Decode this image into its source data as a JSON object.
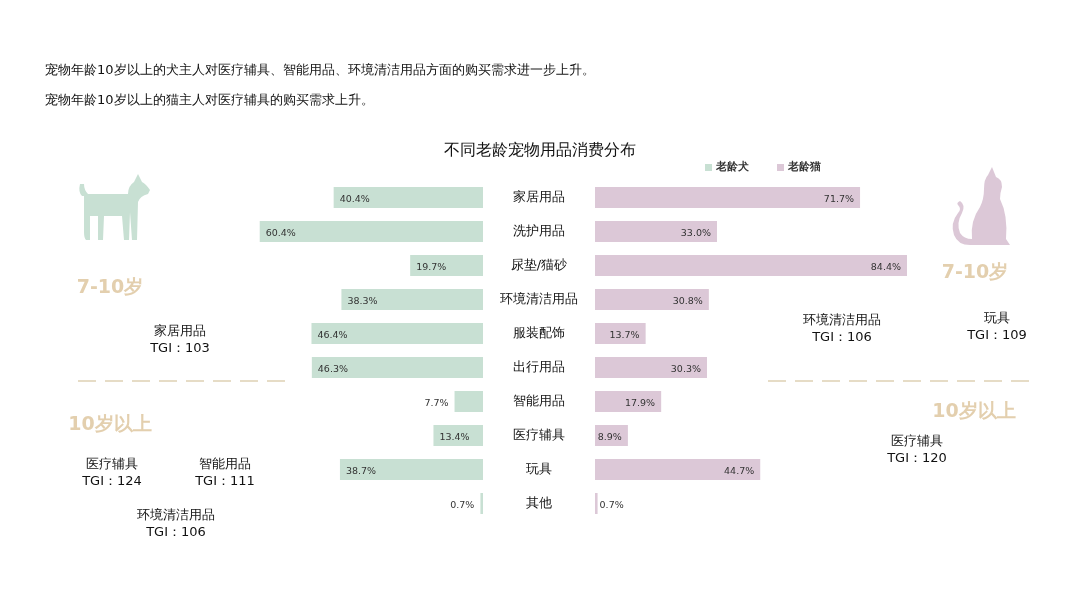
{
  "chart_data": [
    {
      "type": "bar",
      "orientation": "horizontal",
      "title": "不同老龄宠物用品消费分布",
      "legend": "top right",
      "categories": [
        "家居用品",
        "洗护用品",
        "尿垫/猫砂",
        "环境清洁用品",
        "服装配饰",
        "出行用品",
        "智能用品",
        "医疗辅具",
        "玩具",
        "其他"
      ],
      "series": [
        {
          "name": "老龄犬",
          "color": "#c8e0d3",
          "values": [
            40.4,
            60.4,
            19.7,
            38.3,
            46.4,
            46.3,
            7.7,
            13.4,
            38.7,
            0.7
          ],
          "value_labels": [
            "40.4%",
            "60.4%",
            "19.7%",
            "38.3%",
            "46.4%",
            "46.3%",
            "7.7%",
            "13.4%",
            "38.7%",
            "0.7%"
          ]
        }
      ],
      "annotations": [
        "宠物年龄10岁以上的犬主人对医疗辅具、智能用品、环境清洁用品方面的购买需求进一步上升。",
        "宠物年龄10岁以上的猫主人对医疗辅具的购买需求上升。",
        "7-10岁",
        "家居用品\nTGI：103",
        "10岁以上",
        "医疗辅具\nTGI：124",
        "智能用品\nTGI：111",
        "环境清洁用品\nTGI：106"
      ]
    },
    {
      "type": "bar",
      "orientation": "horizontal",
      "legend": "top right",
      "series": [
        {
          "name": "老龄猫",
          "color": "#dcc8d7",
          "values": [
            71.7,
            33.0,
            84.4,
            30.8,
            13.7,
            30.3,
            17.9,
            8.9,
            44.7,
            0.7
          ],
          "value_labels": [
            "71.7%",
            "33.0%",
            "84.4%",
            "30.8%",
            "13.7%",
            "30.3%",
            "17.9%",
            "8.9%",
            "44.7%",
            "0.7%"
          ]
        }
      ],
      "annotations": [
        "7-10岁",
        "环境清洁用品\nTGI：106",
        "玩具\nTGI：109",
        "10岁以上",
        "医疗辅具\nTGI：120"
      ]
    }
  ]
}
